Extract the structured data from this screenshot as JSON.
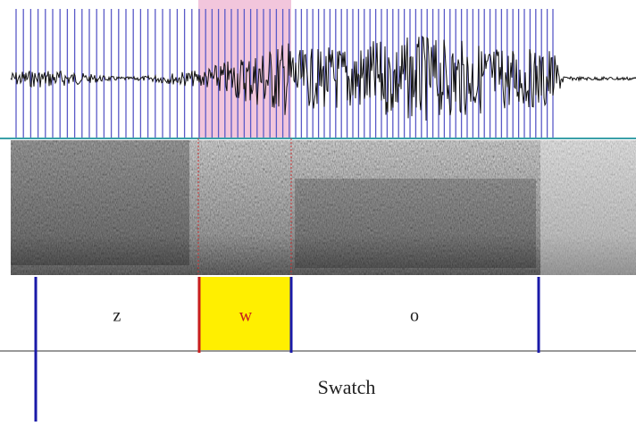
{
  "tiers": [
    {
      "intervals": [
        {
          "label": "z"
        },
        {
          "label": "w"
        },
        {
          "label": "o"
        }
      ]
    },
    {
      "intervals": [
        {
          "label": "Swatch"
        }
      ]
    }
  ]
}
